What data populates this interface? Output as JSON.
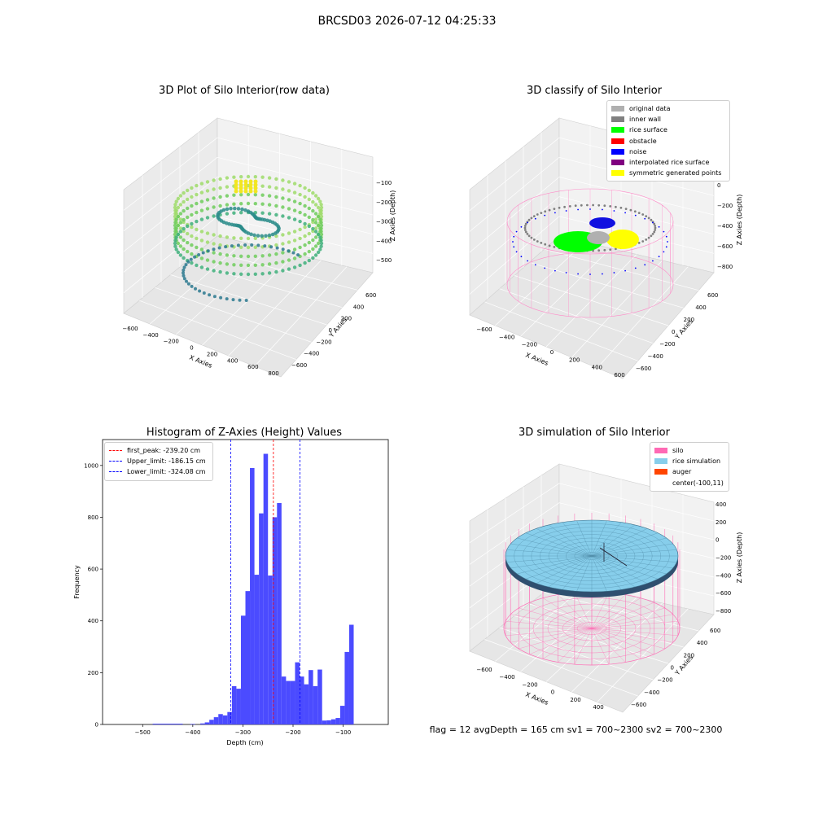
{
  "figure": {
    "suptitle": "BRCSD03 2026-07-12 04:25:33",
    "footer": "flag = 12   avgDepth = 165 cm   sv1 = 700~2300   sv2 = 700~2300"
  },
  "panels": {
    "raw": {
      "title": "3D Plot of Silo Interior(row data)",
      "xlabel": "X Axies",
      "ylabel": "Y Axies",
      "zlabel": "Z Axies (Depth)",
      "xticks": [
        "−600",
        "−400",
        "−200",
        "0",
        "200",
        "400",
        "600",
        "800"
      ],
      "yticks": [
        "−600",
        "−400",
        "−200",
        "0",
        "200",
        "400",
        "600"
      ],
      "zticks": [
        "−100",
        "−200",
        "−300",
        "−400",
        "−500"
      ]
    },
    "classify": {
      "title": "3D classify of Silo Interior",
      "xlabel": "X Axies",
      "ylabel": "Y Axies",
      "zlabel": "Z Axies (Depth)",
      "xticks": [
        "−600",
        "−400",
        "−200",
        "0",
        "200",
        "400",
        "600"
      ],
      "yticks": [
        "−600",
        "−400",
        "−200",
        "0",
        "200",
        "400",
        "600"
      ],
      "zticks": [
        "200",
        "0",
        "−200",
        "−400",
        "−600",
        "−800"
      ],
      "legend": [
        {
          "label": "original data",
          "color": "#b0b0b0"
        },
        {
          "label": "inner wall",
          "color": "#808080"
        },
        {
          "label": "rice surface",
          "color": "#00ff00"
        },
        {
          "label": "obstacle",
          "color": "#ff0000"
        },
        {
          "label": "noise",
          "color": "#0000ff"
        },
        {
          "label": "interpolated rice surface",
          "color": "#800080"
        },
        {
          "label": "symmetric generated points",
          "color": "#ffff00"
        }
      ]
    },
    "simulation": {
      "title": "3D simulation of Silo Interior",
      "xlabel": "X Axies",
      "ylabel": "Y Axies",
      "zlabel": "Z Axies (Depth)",
      "xticks": [
        "−600",
        "−400",
        "−200",
        "0",
        "200",
        "400"
      ],
      "yticks": [
        "−600",
        "−400",
        "−200",
        "0",
        "200",
        "400",
        "600"
      ],
      "zticks": [
        "400",
        "200",
        "0",
        "−200",
        "−400",
        "−600",
        "−800"
      ],
      "legend": [
        {
          "label": "silo",
          "color": "#ff69b4"
        },
        {
          "label": "rice simulation",
          "color": "#87ceeb"
        },
        {
          "label": "auger",
          "color": "#ff4500"
        },
        {
          "label": "center(-100,11)",
          "color": ""
        }
      ]
    }
  },
  "chart_data": {
    "type": "bar",
    "title": "Histogram of Z-Axies (Height) Values",
    "xlabel": "Depth (cm)",
    "ylabel": "Frequency",
    "xlim": [
      -580,
      -10
    ],
    "ylim": [
      0,
      1100
    ],
    "xticks": [
      -500,
      -400,
      -300,
      -200,
      -100
    ],
    "yticks": [
      0,
      200,
      400,
      600,
      800,
      1000
    ],
    "bar_color": "#4b4bff",
    "bins": [
      {
        "x0": -480,
        "x1": -420,
        "v": 3
      },
      {
        "x0": -405,
        "x1": -395,
        "v": 2
      },
      {
        "x0": -385,
        "x1": -376,
        "v": 4
      },
      {
        "x0": -376,
        "x1": -367,
        "v": 8
      },
      {
        "x0": -367,
        "x1": -358,
        "v": 18
      },
      {
        "x0": -358,
        "x1": -349,
        "v": 28
      },
      {
        "x0": -349,
        "x1": -340,
        "v": 40
      },
      {
        "x0": -340,
        "x1": -331,
        "v": 35
      },
      {
        "x0": -331,
        "x1": -322,
        "v": 48
      },
      {
        "x0": -322,
        "x1": -313,
        "v": 148
      },
      {
        "x0": -313,
        "x1": -304,
        "v": 138
      },
      {
        "x0": -304,
        "x1": -295,
        "v": 420
      },
      {
        "x0": -295,
        "x1": -286,
        "v": 515
      },
      {
        "x0": -286,
        "x1": -277,
        "v": 990
      },
      {
        "x0": -277,
        "x1": -268,
        "v": 578
      },
      {
        "x0": -268,
        "x1": -259,
        "v": 815
      },
      {
        "x0": -259,
        "x1": -250,
        "v": 1045
      },
      {
        "x0": -250,
        "x1": -241,
        "v": 575
      },
      {
        "x0": -241,
        "x1": -232,
        "v": 800
      },
      {
        "x0": -232,
        "x1": -223,
        "v": 855
      },
      {
        "x0": -223,
        "x1": -214,
        "v": 185
      },
      {
        "x0": -214,
        "x1": -205,
        "v": 168
      },
      {
        "x0": -205,
        "x1": -196,
        "v": 168
      },
      {
        "x0": -196,
        "x1": -187,
        "v": 240
      },
      {
        "x0": -187,
        "x1": -178,
        "v": 185
      },
      {
        "x0": -178,
        "x1": -169,
        "v": 155
      },
      {
        "x0": -169,
        "x1": -160,
        "v": 210
      },
      {
        "x0": -160,
        "x1": -151,
        "v": 148
      },
      {
        "x0": -151,
        "x1": -142,
        "v": 212
      },
      {
        "x0": -142,
        "x1": -133,
        "v": 15
      },
      {
        "x0": -133,
        "x1": -124,
        "v": 16
      },
      {
        "x0": -124,
        "x1": -115,
        "v": 20
      },
      {
        "x0": -115,
        "x1": -106,
        "v": 25
      },
      {
        "x0": -106,
        "x1": -97,
        "v": 72
      },
      {
        "x0": -97,
        "x1": -88,
        "v": 280
      },
      {
        "x0": -88,
        "x1": -79,
        "v": 385
      }
    ],
    "vlines": [
      {
        "label": "first_peak: -239.20 cm",
        "x": -239.2,
        "color": "#ff0000"
      },
      {
        "label": "Upper_limit: -186.15 cm",
        "x": -186.15,
        "color": "#0000ff"
      },
      {
        "label": "Lower_limit: -324.08 cm",
        "x": -324.08,
        "color": "#0000ff"
      }
    ]
  }
}
